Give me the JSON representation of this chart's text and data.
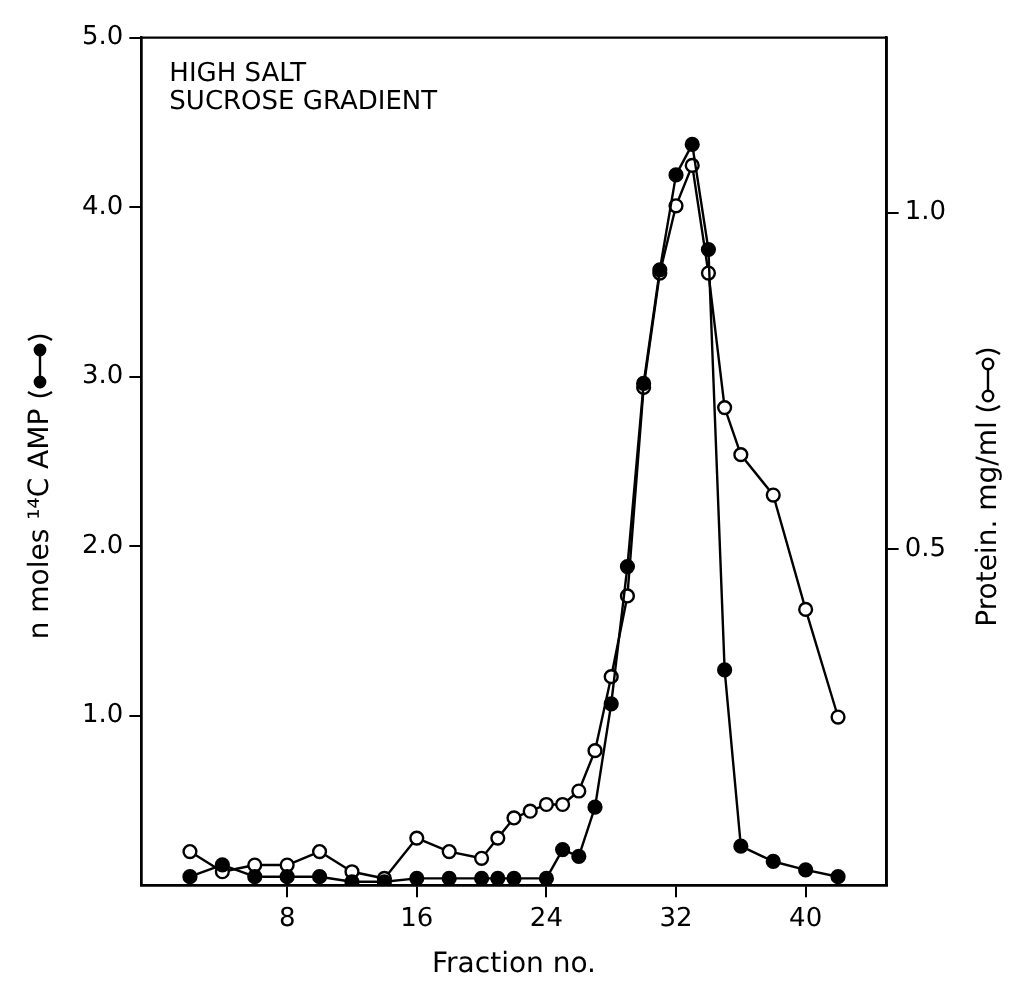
{
  "chart_data": {
    "type": "line",
    "xlabel": "Fraction no.",
    "ylabel": "n moles ¹⁴C AMP",
    "y2label": "Protein. mg/ml",
    "annotations": [
      "HIGH SALT",
      "SUCROSE GRADIENT"
    ],
    "series": [
      {
        "color": "#000000",
        "axis": "y",
        "x": [
          2,
          4,
          6,
          8,
          10,
          12,
          14,
          16,
          18,
          20,
          21,
          22,
          24,
          25,
          26,
          27,
          28,
          29,
          30,
          31,
          32,
          33,
          34,
          35,
          36,
          38,
          40,
          42
        ],
        "values": [
          0.05,
          0.12,
          0.05,
          0.05,
          0.05,
          0.02,
          0.02,
          0.04,
          0.04,
          0.04,
          0.04,
          0.04,
          0.04,
          0.21,
          0.17,
          0.46,
          1.07,
          1.88,
          2.96,
          3.63,
          4.19,
          4.37,
          3.75,
          1.27,
          0.23,
          0.14,
          0.09,
          0.05
        ]
      },
      {
        "color": "#000000",
        "axis": "y2",
        "x": [
          2,
          4,
          6,
          8,
          10,
          12,
          14,
          16,
          18,
          20,
          21,
          22,
          23,
          24,
          25,
          26,
          27,
          28,
          29,
          30,
          31,
          32,
          33,
          34,
          35,
          36,
          38,
          40,
          42
        ],
        "values": [
          0.05,
          0.02,
          0.03,
          0.03,
          0.05,
          0.02,
          0.01,
          0.07,
          0.05,
          0.04,
          0.07,
          0.1,
          0.11,
          0.12,
          0.12,
          0.14,
          0.2,
          0.31,
          0.43,
          0.74,
          0.91,
          1.01,
          1.07,
          0.91,
          0.71,
          0.64,
          0.58,
          0.41,
          0.25
        ]
      }
    ],
    "xlim": [
      -1,
      45
    ],
    "xticks": [
      8,
      16,
      24,
      32,
      40
    ],
    "ylim": [
      0,
      5
    ],
    "yticks": [
      {
        "value": 1,
        "label": "1.0"
      },
      {
        "value": 2,
        "label": "2.0"
      },
      {
        "value": 3,
        "label": "3.0"
      },
      {
        "value": 4,
        "label": "4.0"
      },
      {
        "value": 5,
        "label": "5.0"
      }
    ],
    "y2lim": [
      0,
      1.26
    ],
    "y2ticks": [
      {
        "value": 0.5,
        "label": "0.5"
      },
      {
        "value": 1,
        "label": "1.0"
      }
    ],
    "grid": false,
    "legend": false,
    "marker": "circle",
    "line_style": "solid"
  }
}
